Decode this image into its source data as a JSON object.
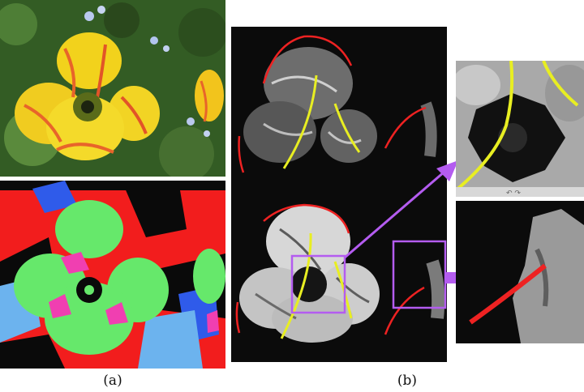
{
  "figure": {
    "caption_a": "(a)",
    "caption_b": "(b)"
  },
  "colors": {
    "background": "#ffffff",
    "petal_yellow": "#f2d21c",
    "petal_orange": "#e8642a",
    "foliage_green": "#3f6b2a",
    "seg_red": "#f21d1d",
    "seg_green": "#66e86b",
    "seg_blue": "#2f5bea",
    "seg_lightblue": "#6cb3ee",
    "seg_pink": "#f03fb1",
    "seg_black": "#000000",
    "stroke_red": "#ee2222",
    "stroke_yellow": "#e8ee22",
    "highlight_purple": "#b45cf0"
  },
  "icons": {
    "zoom_arrows": "purple-arrow-icon",
    "inset_glyph": "rotate-arrows-icon"
  }
}
